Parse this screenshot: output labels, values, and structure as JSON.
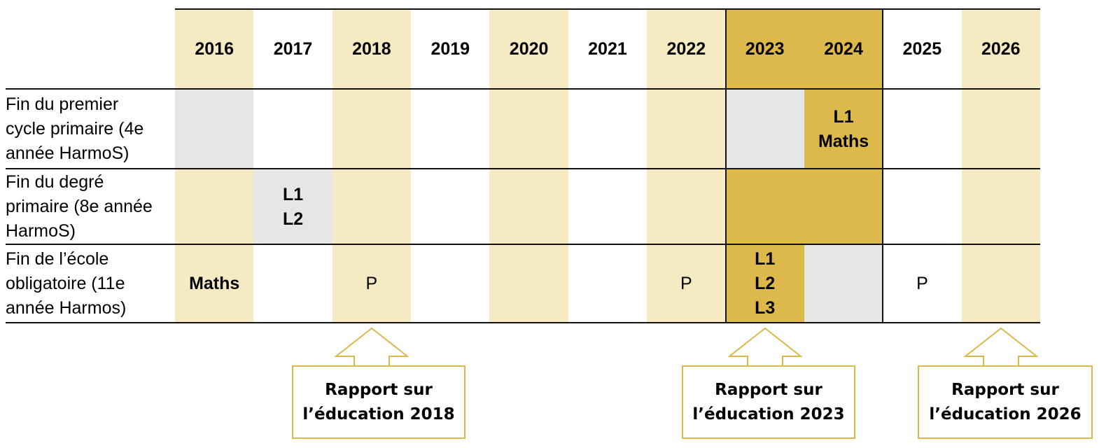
{
  "columns": [
    "2016",
    "2017",
    "2018",
    "2019",
    "2020",
    "2021",
    "2022",
    "2023",
    "2024",
    "2025",
    "2026"
  ],
  "rows": [
    {
      "label": "Fin du premier\ncycle primaire (4e\nannée HarmoS)",
      "cells": [
        {
          "text": "",
          "shade": "grey"
        },
        {
          "text": "",
          "shade": "none"
        },
        {
          "text": "",
          "shade": "light"
        },
        {
          "text": "",
          "shade": "none"
        },
        {
          "text": "",
          "shade": "light"
        },
        {
          "text": "",
          "shade": "none"
        },
        {
          "text": "",
          "shade": "light"
        },
        {
          "text": "",
          "shade": "grey"
        },
        {
          "text": "L1\nMaths",
          "shade": "gold",
          "bold": true
        },
        {
          "text": "",
          "shade": "none"
        },
        {
          "text": "",
          "shade": "light"
        }
      ]
    },
    {
      "label": "Fin du degré\nprimaire (8e année\nHarmoS)",
      "cells": [
        {
          "text": "",
          "shade": "light"
        },
        {
          "text": "L1\nL2",
          "shade": "grey",
          "bold": true
        },
        {
          "text": "",
          "shade": "light"
        },
        {
          "text": "",
          "shade": "none"
        },
        {
          "text": "",
          "shade": "light"
        },
        {
          "text": "",
          "shade": "none"
        },
        {
          "text": "",
          "shade": "light"
        },
        {
          "text": "",
          "shade": "gold"
        },
        {
          "text": "",
          "shade": "gold"
        },
        {
          "text": "",
          "shade": "none"
        },
        {
          "text": "",
          "shade": "light"
        }
      ]
    },
    {
      "label": "Fin de l’école\nobligatoire (11e\nannée Harmos)",
      "cells": [
        {
          "text": "Maths",
          "shade": "light",
          "bold": true
        },
        {
          "text": "",
          "shade": "none"
        },
        {
          "text": "P",
          "shade": "light"
        },
        {
          "text": "",
          "shade": "none"
        },
        {
          "text": "",
          "shade": "light"
        },
        {
          "text": "",
          "shade": "none"
        },
        {
          "text": "P",
          "shade": "light"
        },
        {
          "text": "L1\nL2\nL3",
          "shade": "gold",
          "bold": true
        },
        {
          "text": "",
          "shade": "grey"
        },
        {
          "text": "P",
          "shade": "none"
        },
        {
          "text": "",
          "shade": "light"
        }
      ]
    }
  ],
  "header_highlight": {
    "columns": [
      "2023",
      "2024"
    ]
  },
  "reports": [
    {
      "year": "2018",
      "label": "Rapport sur\nl’éducation 2018"
    },
    {
      "year": "2023",
      "label": "Rapport sur\nl’éducation 2023"
    },
    {
      "year": "2026",
      "label": "Rapport sur\nl’éducation 2026"
    }
  ],
  "colors": {
    "light": "#f6eac2",
    "gold": "#dcb94a",
    "grey": "#e6e6e6",
    "none": "#ffffff",
    "rule": "#111111",
    "arrow": "#d9b94c"
  }
}
